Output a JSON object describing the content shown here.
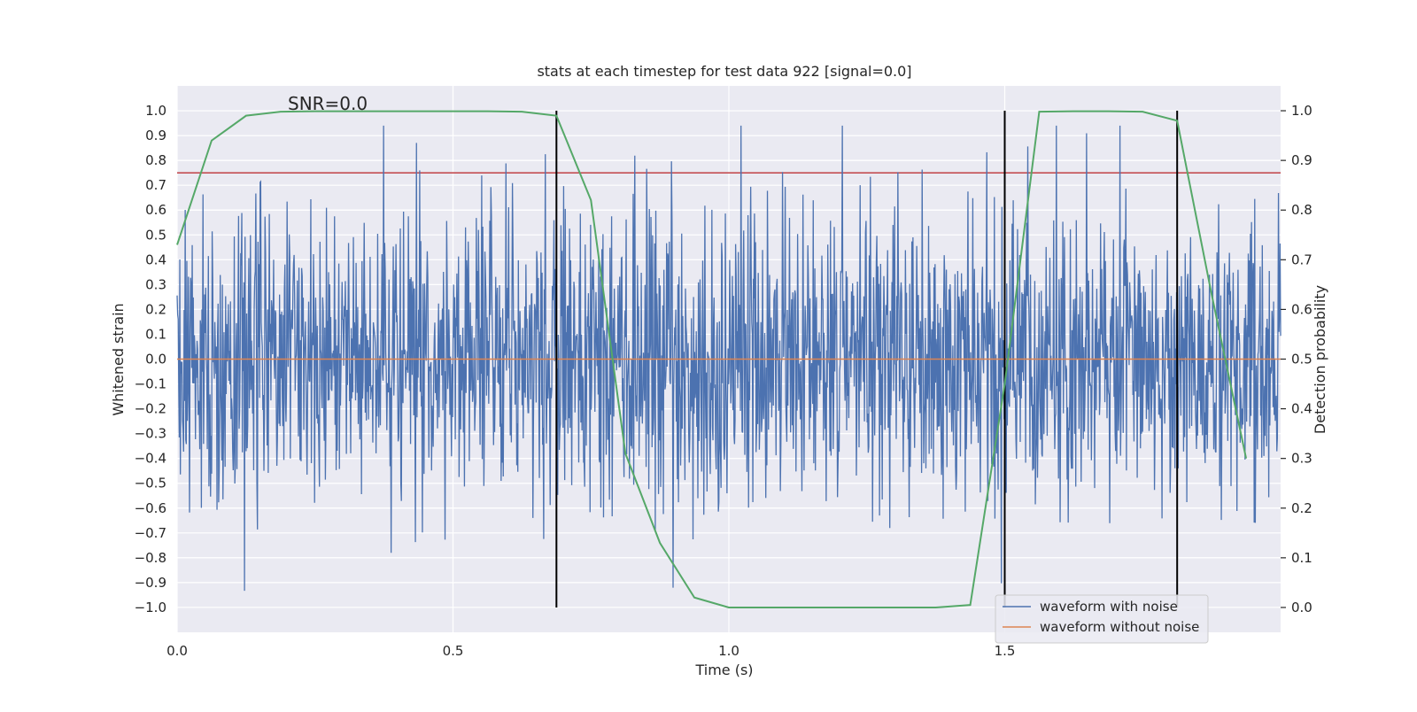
{
  "chart_data": {
    "type": "line",
    "title": "stats at each timestep for test data 922 [signal=0.0]",
    "annotation": "SNR=0.0",
    "xlabel": "Time (s)",
    "ylabel": "Whitened strain",
    "y2label": "Detection probability",
    "xlim": [
      0.0,
      2.0
    ],
    "ylim": [
      -1.1,
      1.1
    ],
    "y2lim": [
      -0.05,
      1.05
    ],
    "x_ticks": [
      "0.0",
      "0.5",
      "1.0",
      "1.5"
    ],
    "y_ticks": [
      "1.0",
      "0.9",
      "0.8",
      "0.7",
      "0.6",
      "0.5",
      "0.4",
      "0.3",
      "0.2",
      "0.1",
      "0.0",
      "-0.1",
      "-0.2",
      "-0.3",
      "-0.4",
      "-0.5",
      "-0.6",
      "-0.7",
      "-0.8",
      "-0.9",
      "-1.0"
    ],
    "y2_ticks": [
      "1.0",
      "0.9",
      "0.8",
      "0.7",
      "0.6",
      "0.5",
      "0.4",
      "0.3",
      "0.2",
      "0.1",
      "0.0"
    ],
    "threshold": 0.75,
    "vertical_markers": [
      0.6875,
      1.5,
      1.8125
    ],
    "colors": {
      "noise": "#4c72b0",
      "clean": "#dd8452",
      "probability": "#55a868",
      "threshold": "#c44e52",
      "marker": "#000000",
      "background": "#eaeaf2",
      "grid": "#ffffff"
    },
    "series": [
      {
        "name": "waveform with noise",
        "axis": "left",
        "sample_count": 2048,
        "amplitude_range": [
          -1.0,
          0.94
        ],
        "description_values": "dense white-noise strain between about -1.0 and 0.94"
      },
      {
        "name": "waveform without noise",
        "axis": "left",
        "x": [
          0.0,
          2.0
        ],
        "values": [
          0.0,
          0.0
        ]
      },
      {
        "name": "detection probability",
        "axis": "right",
        "x": [
          0.0,
          0.0625,
          0.125,
          0.1875,
          0.25,
          0.3125,
          0.375,
          0.4375,
          0.5,
          0.5625,
          0.625,
          0.6875,
          0.75,
          0.8125,
          0.875,
          0.9375,
          1.0,
          1.0625,
          1.125,
          1.1875,
          1.25,
          1.3125,
          1.375,
          1.4375,
          1.5,
          1.5625,
          1.625,
          1.6875,
          1.75,
          1.8125,
          1.875,
          1.9375
        ],
        "values": [
          0.73,
          0.94,
          0.99,
          0.998,
          0.999,
          0.999,
          0.999,
          0.999,
          0.999,
          0.999,
          0.998,
          0.99,
          0.82,
          0.31,
          0.13,
          0.02,
          0.0,
          0.0,
          0.0,
          0.0,
          0.0,
          0.0,
          0.0,
          0.005,
          0.45,
          0.998,
          0.999,
          0.999,
          0.998,
          0.98,
          0.63,
          0.3
        ]
      }
    ],
    "legend": {
      "position": "lower-right",
      "entries": [
        "waveform with noise",
        "waveform without noise"
      ]
    }
  }
}
